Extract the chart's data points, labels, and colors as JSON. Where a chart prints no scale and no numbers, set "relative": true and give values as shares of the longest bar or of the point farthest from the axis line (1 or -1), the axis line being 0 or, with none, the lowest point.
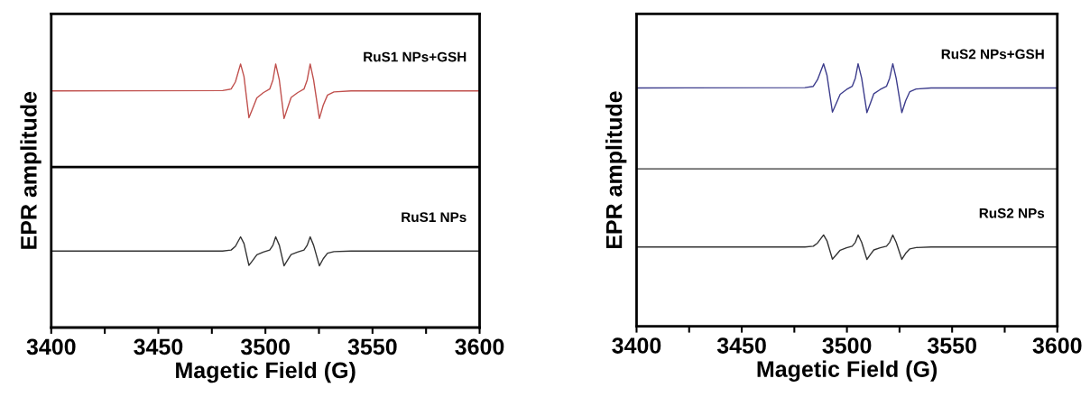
{
  "chart_data": [
    {
      "type": "line",
      "relative": true,
      "xlabel": "Magetic Field (G)",
      "ylabel": "EPR amplitude",
      "xlim": [
        3400,
        3600
      ],
      "xticks": [
        3400,
        {
          "value": 3425,
          "label": null
        },
        3450,
        {
          "value": 3475,
          "label": null
        },
        3500,
        {
          "value": 3525,
          "label": null
        },
        3550,
        {
          "value": 3575,
          "label": null
        },
        3600
      ],
      "tick_labels": "x",
      "grid": false,
      "legend": false,
      "marker": "none",
      "line_style": "solid",
      "x": [
        3400,
        3480,
        3484,
        3486,
        3488.4,
        3490,
        3492.3,
        3494,
        3496,
        3499,
        3502,
        3503.5,
        3504.8,
        3506.5,
        3508.7,
        3510.5,
        3512,
        3515,
        3518,
        3519.5,
        3520.9,
        3522.5,
        3525.2,
        3527,
        3529,
        3532,
        3540,
        3600
      ],
      "ref_lines": [
        {
          "axis": "y",
          "value": 0.609,
          "color": "#000000",
          "line_style": "solid"
        }
      ],
      "series": [
        {
          "name": "RuS1 NPs+GSH",
          "color": "#c0504d",
          "values": [
            0.898,
            0.899,
            0.905,
            0.932,
            1.0,
            0.952,
            0.796,
            0.83,
            0.871,
            0.891,
            0.905,
            0.939,
            1.0,
            0.939,
            0.793,
            0.837,
            0.873,
            0.891,
            0.905,
            0.939,
            1.0,
            0.939,
            0.793,
            0.844,
            0.882,
            0.894,
            0.898,
            0.898
          ]
        },
        {
          "name": "RuS1 NPs",
          "color": "#333333",
          "values": [
            0.29,
            0.29,
            0.294,
            0.308,
            0.344,
            0.319,
            0.236,
            0.254,
            0.276,
            0.286,
            0.294,
            0.312,
            0.344,
            0.312,
            0.234,
            0.258,
            0.277,
            0.286,
            0.294,
            0.312,
            0.344,
            0.312,
            0.234,
            0.261,
            0.282,
            0.288,
            0.29,
            0.29
          ]
        }
      ]
    },
    {
      "type": "line",
      "relative": true,
      "xlabel": "Magetic Field (G)",
      "ylabel": "EPR amplitude",
      "xlim": [
        3400,
        3600
      ],
      "xticks": [
        3400,
        {
          "value": 3425,
          "label": null
        },
        3450,
        {
          "value": 3475,
          "label": null
        },
        3500,
        {
          "value": 3525,
          "label": null
        },
        3550,
        {
          "value": 3575,
          "label": null
        },
        3600
      ],
      "tick_labels": "x",
      "grid": false,
      "legend": false,
      "marker": "none",
      "line_style": "solid",
      "x": [
        3400,
        3480,
        3484,
        3486,
        3488.9,
        3490.5,
        3493.1,
        3494.8,
        3496.8,
        3499.8,
        3502.5,
        3504,
        3505.3,
        3507,
        3509.5,
        3511.3,
        3512.8,
        3515.8,
        3518.8,
        3520.3,
        3521.8,
        3523.4,
        3526.1,
        3527.9,
        3529.9,
        3532.9,
        3540,
        3600
      ],
      "ref_lines": [
        {
          "axis": "y",
          "value": 0.6,
          "color": "#333333",
          "line_style": "solid"
        }
      ],
      "series": [
        {
          "name": "RuS2 NPs+GSH",
          "color": "#3c3c8c",
          "values": [
            0.908,
            0.909,
            0.914,
            0.939,
            1.0,
            0.957,
            0.816,
            0.847,
            0.884,
            0.902,
            0.914,
            0.945,
            1.0,
            0.945,
            0.814,
            0.853,
            0.886,
            0.902,
            0.914,
            0.945,
            1.0,
            0.945,
            0.814,
            0.859,
            0.894,
            0.904,
            0.908,
            0.908
          ]
        },
        {
          "name": "RuS2 NPs",
          "color": "#333333",
          "values": [
            0.302,
            0.302,
            0.305,
            0.317,
            0.348,
            0.326,
            0.256,
            0.271,
            0.29,
            0.299,
            0.305,
            0.32,
            0.348,
            0.32,
            0.255,
            0.275,
            0.291,
            0.299,
            0.305,
            0.32,
            0.348,
            0.32,
            0.255,
            0.278,
            0.295,
            0.3,
            0.302,
            0.302
          ]
        }
      ]
    }
  ]
}
